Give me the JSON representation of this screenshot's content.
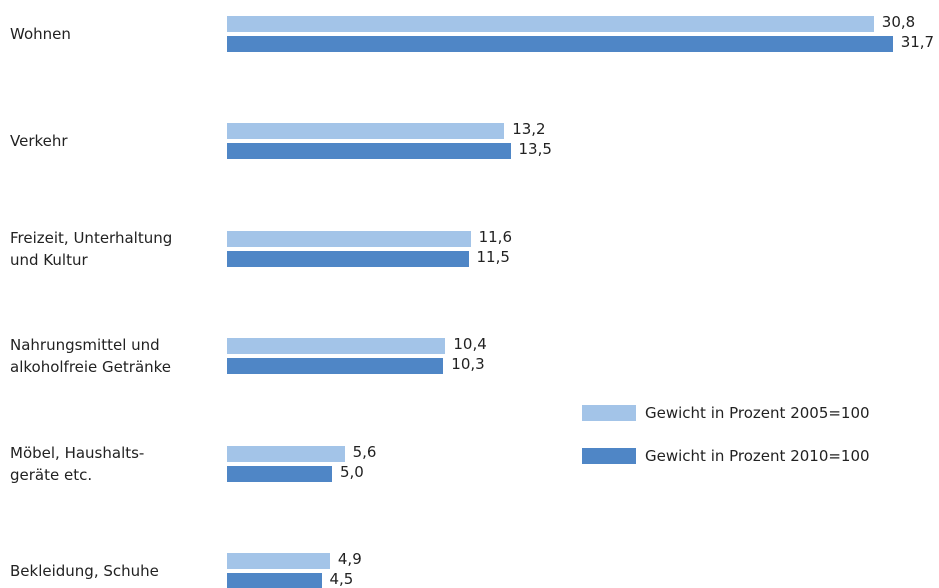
{
  "chart_data": {
    "type": "bar",
    "orientation": "horizontal",
    "categories": [
      "Wohnen",
      "Verkehr",
      "Freizeit, Unterhaltung\nund Kultur",
      "Nahrungsmittel und\nalkoholfreie Getränke",
      "Möbel, Haushalts-\ngeräte etc.",
      "Bekleidung, Schuhe"
    ],
    "series": [
      {
        "name": "Gewicht in Prozent 2005=100",
        "color": "#a3c4e8",
        "values": [
          30.8,
          13.2,
          11.6,
          10.4,
          5.6,
          4.9
        ],
        "value_labels": [
          "30,8",
          "13,2",
          "11,6",
          "10,4",
          "5,6",
          "4,9"
        ]
      },
      {
        "name": "Gewicht in Prozent 2010=100",
        "color": "#4f86c6",
        "values": [
          31.7,
          13.5,
          11.5,
          10.3,
          5.0,
          4.5
        ],
        "value_labels": [
          "31,7",
          "13,5",
          "11,5",
          "10,3",
          "5,0",
          "4,5"
        ]
      }
    ]
  }
}
